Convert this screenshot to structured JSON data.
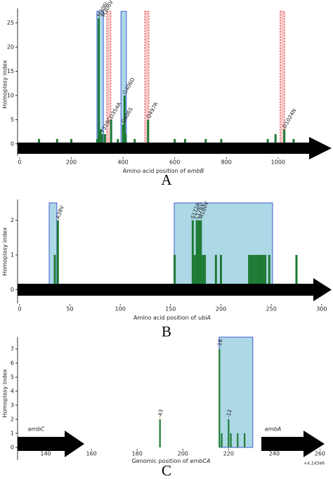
{
  "chart_data": [
    {
      "type": "bar",
      "panel": "A",
      "ylabel": "Homoplasy index",
      "xlabel": "Amino acid position of",
      "xlabel_italic": "embB",
      "color": "#1e7b34",
      "x": [
        75,
        145,
        200,
        300,
        306,
        313,
        319,
        330,
        354,
        380,
        400,
        406,
        410,
        445,
        497,
        600,
        640,
        720,
        780,
        960,
        990,
        1024,
        1060
      ],
      "values": [
        1,
        1,
        1,
        1,
        26,
        3,
        2,
        2,
        5,
        1,
        4,
        10,
        2,
        1,
        5,
        1,
        1,
        1,
        1,
        1,
        2,
        3,
        1
      ],
      "xlim": [
        -8,
        1120
      ],
      "ylim": [
        -2.5,
        28
      ],
      "xticks": [
        0,
        200,
        400,
        600,
        800,
        1000
      ],
      "yticks": [
        0,
        5,
        10,
        15,
        20,
        25
      ],
      "regions": [
        {
          "x": [
            299,
            324
          ],
          "top": 27.4,
          "fill": "#add8e6",
          "edge": "#3b5bd6",
          "dashed": false
        },
        {
          "x": [
            337,
            353
          ],
          "top": 27.4,
          "fill": "#f6caca",
          "edge": "#e03030",
          "dashed": true
        },
        {
          "x": [
            392,
            413
          ],
          "top": 27.4,
          "fill": "#add8e6",
          "edge": "#3b5bd6",
          "dashed": false
        },
        {
          "x": [
            484,
            500
          ],
          "top": 27.4,
          "fill": "#f6caca",
          "edge": "#e03030",
          "dashed": true
        },
        {
          "x": [
            1008,
            1025
          ],
          "top": 27.4,
          "fill": "#f6caca",
          "edge": "#e03030",
          "dashed": true
        }
      ],
      "annotations": [
        {
          "text": "M306I",
          "x": 306
        },
        {
          "text": "M306V",
          "x": 306
        },
        {
          "text": "Y319C",
          "x": 319
        },
        {
          "text": "D354A",
          "x": 354
        },
        {
          "text": "G406D",
          "x": 406
        },
        {
          "text": "G406S",
          "x": 400
        },
        {
          "text": "Q497R",
          "x": 497
        },
        {
          "text": "D1024N",
          "x": 1024
        }
      ]
    },
    {
      "type": "bar",
      "panel": "B",
      "ylabel": "Homoplasy index",
      "xlabel": "Amino acid position of",
      "xlabel_italic": "ubiA",
      "color": "#1e7b34",
      "x": [
        35,
        38,
        154,
        172,
        174,
        176,
        178,
        180,
        182,
        184,
        195,
        200,
        228,
        230,
        232,
        234,
        236,
        238,
        240,
        242,
        244,
        248,
        275
      ],
      "values": [
        1,
        2,
        1,
        2,
        1,
        2,
        2,
        2,
        1,
        1,
        1,
        1,
        1,
        1,
        1,
        1,
        1,
        1,
        1,
        1,
        1,
        1,
        1
      ],
      "xlim": [
        -2,
        305
      ],
      "ylim": [
        -0.4,
        2.6
      ],
      "xticks": [
        0,
        50,
        100,
        150,
        200,
        250,
        300
      ],
      "yticks": [
        0,
        1,
        2
      ],
      "regions": [
        {
          "x": [
            29.4,
            37
          ],
          "top": 2.5,
          "fill": "#add8e6",
          "edge": "#3b5bd6",
          "dashed": false
        },
        {
          "x": [
            153.6,
            251.2
          ],
          "top": 2.5,
          "fill": "#add8e6",
          "edge": "#3b5bd6",
          "dashed": false
        }
      ],
      "annotations": [
        {
          "text": "A38V",
          "x": 38
        },
        {
          "text": "S172A",
          "x": 172
        },
        {
          "text": "L176V",
          "x": 176
        },
        {
          "text": "M180V",
          "x": 180
        }
      ]
    },
    {
      "type": "bar",
      "panel": "C",
      "ylabel": "Homoplasy index",
      "xlabel": "Genomic position of",
      "xlabel_italic": "embCA",
      "color": "#1e7b34",
      "x": [
        190,
        216,
        217,
        220,
        221,
        224,
        227
      ],
      "values": [
        2,
        7,
        1,
        2,
        1,
        1,
        1
      ],
      "xlim": [
        127.7,
        262
      ],
      "ylim": [
        -0.9,
        7.85
      ],
      "xticks": [
        140,
        160,
        180,
        200,
        220,
        240,
        260
      ],
      "yticks": [
        0,
        1,
        2,
        3,
        4,
        5,
        6,
        7
      ],
      "offset_label": "+4.243e6",
      "genes": [
        "embC",
        "embA"
      ],
      "regions": [
        {
          "x": [
            215.9,
            230.6
          ],
          "top": 7.85,
          "fill": "#add8e6",
          "edge": "#3b5bd6",
          "dashed": false
        }
      ],
      "annotations": [
        {
          "text": "-43",
          "x": 190
        },
        {
          "text": "-16",
          "x": 216
        },
        {
          "text": "-12",
          "x": 220
        }
      ]
    }
  ]
}
